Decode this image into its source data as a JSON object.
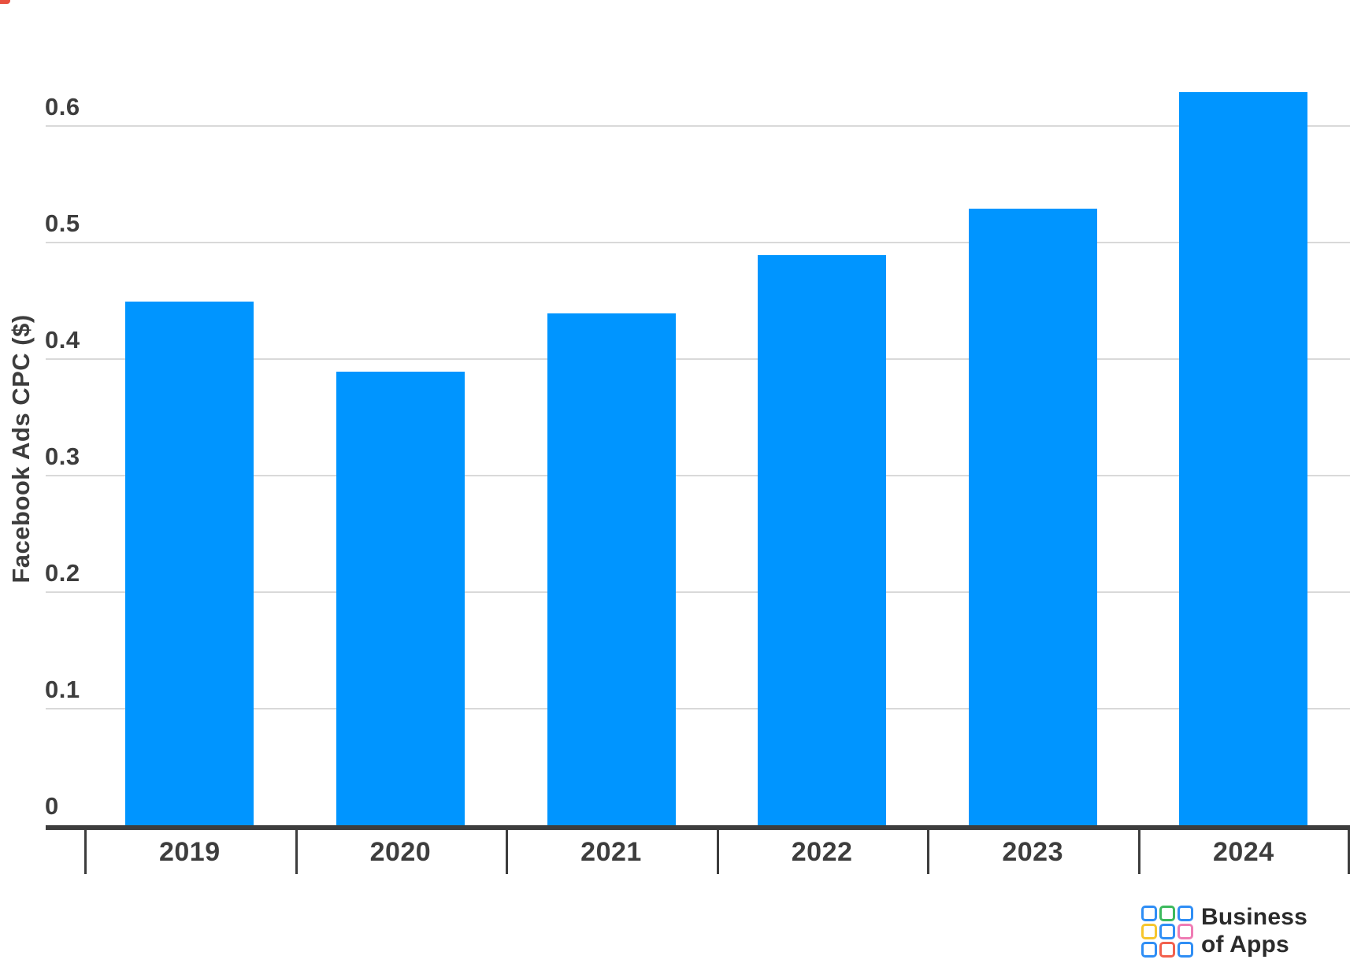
{
  "chart_data": {
    "type": "bar",
    "title": "",
    "categories": [
      "2019",
      "2020",
      "2021",
      "2022",
      "2023",
      "2024"
    ],
    "values": [
      0.45,
      0.39,
      0.44,
      0.49,
      0.53,
      0.63
    ],
    "series_name": "Facebook Ads CPC",
    "xlabel": "",
    "ylabel": "Facebook Ads CPC ($)",
    "ylim": [
      0,
      0.65
    ],
    "yticks": [
      0,
      0.1,
      0.2,
      0.3,
      0.4,
      0.5,
      0.6
    ],
    "ytick_labels": [
      "0",
      "0.1",
      "0.2",
      "0.3",
      "0.4",
      "0.5",
      "0.6"
    ],
    "grid": true,
    "legend": false,
    "bar_color": "#0095ff"
  },
  "colors": {
    "background": "#ffffff",
    "axis": "#3d3d3d",
    "gridline": "#d9d9d9",
    "text": "#3d3d3d",
    "logo_text": "#2b2b2b",
    "corner_artifact": "#e8503f"
  },
  "branding": {
    "name": "Business of Apps",
    "line1": "Business",
    "line2": "of Apps",
    "grid_colors": [
      "#2f8ef5",
      "#3cb95d",
      "#2f8ef5",
      "#f6c62d",
      "#2f8ef5",
      "#ef7cb4",
      "#2f8ef5",
      "#f2604d",
      "#2f8ef5"
    ]
  }
}
